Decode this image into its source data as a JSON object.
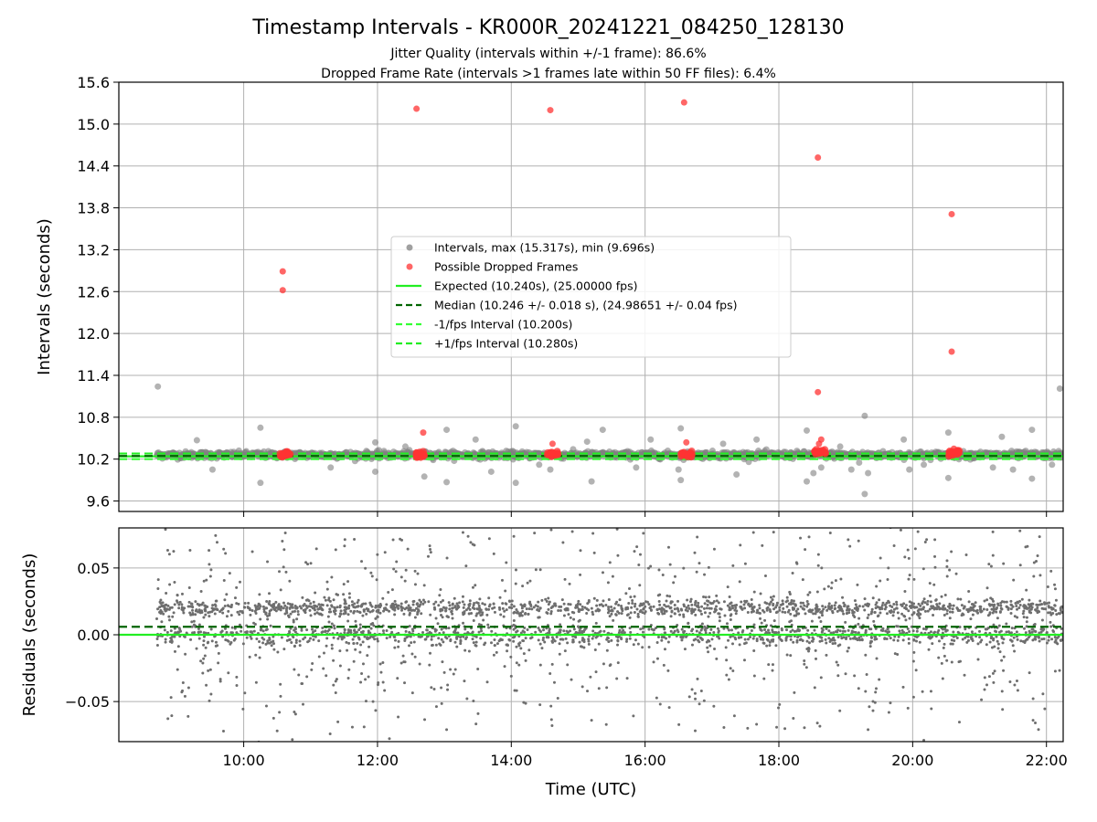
{
  "title": "Timestamp Intervals - KR000R_20241221_084250_128130",
  "subtitle_1": "Jitter Quality (intervals within +/-1 frame): 86.6%",
  "subtitle_2": "Dropped Frame Rate (intervals >1 frames late within 50 FF files): 6.4%",
  "colors": {
    "intervals": "#808080",
    "dropped": "#ff3333",
    "expected": "#22ee22",
    "median": "#006400",
    "minus_fps": "#33ff33",
    "plus_fps": "#22ee22",
    "residual_points": "#6e6e6e",
    "grid": "#b0b0b0"
  },
  "chart_data": [
    {
      "type": "scatter",
      "panel": "top",
      "xlabel": "",
      "ylabel": "Intervals (seconds)",
      "xlim": [
        "08:08",
        "22:15"
      ],
      "ylim": [
        9.45,
        15.6
      ],
      "yticks": [
        9.6,
        10.2,
        10.8,
        11.4,
        12.0,
        12.6,
        13.2,
        13.8,
        14.4,
        15.0,
        15.6
      ],
      "ytick_labels": [
        "9.6",
        "10.2",
        "10.8",
        "11.4",
        "12.0",
        "12.6",
        "13.2",
        "13.8",
        "14.4",
        "15.0",
        "15.6"
      ],
      "xticks": [
        "10:00",
        "12:00",
        "14:00",
        "16:00",
        "18:00",
        "20:00",
        "22:00"
      ],
      "grid": true,
      "legend_position": "center",
      "legend": [
        {
          "label": "Intervals, max (15.317s), min (9.696s)",
          "marker": "dot",
          "color_key": "intervals"
        },
        {
          "label": "Possible Dropped Frames",
          "marker": "dot",
          "color_key": "dropped"
        },
        {
          "label": "Expected (10.240s), (25.00000 fps)",
          "marker": "solid",
          "color_key": "expected"
        },
        {
          "label": "Median (10.246 +/- 0.018 s), (24.98651 +/- 0.04 fps)",
          "marker": "dashed",
          "color_key": "median"
        },
        {
          "label": "-1/fps Interval (10.200s)",
          "marker": "dashed",
          "color_key": "minus_fps"
        },
        {
          "label": "+1/fps Interval (10.280s)",
          "marker": "dashed",
          "color_key": "plus_fps"
        }
      ],
      "reference_lines": [
        {
          "name": "Expected",
          "y": 10.24,
          "style": "solid",
          "color_key": "expected"
        },
        {
          "name": "Median",
          "y": 10.246,
          "style": "dashed",
          "color_key": "median"
        },
        {
          "name": "-1/fps Interval",
          "y": 10.2,
          "style": "dashed",
          "color_key": "minus_fps"
        },
        {
          "name": "+1/fps Interval",
          "y": 10.28,
          "style": "dashed",
          "color_key": "plus_fps"
        }
      ],
      "series": [
        {
          "name": "Intervals",
          "color_key": "intervals",
          "band": {
            "x_start": "08:42",
            "x_end": "22:15",
            "y_center": 10.26,
            "y_spread": 0.05,
            "count": 1600
          },
          "points": [
            {
              "x": "08:43",
              "y": 11.24
            },
            {
              "x": "09:18",
              "y": 10.47
            },
            {
              "x": "09:32",
              "y": 10.05
            },
            {
              "x": "10:15",
              "y": 10.65
            },
            {
              "x": "10:15",
              "y": 9.86
            },
            {
              "x": "11:18",
              "y": 10.08
            },
            {
              "x": "11:58",
              "y": 10.44
            },
            {
              "x": "11:58",
              "y": 10.02
            },
            {
              "x": "12:25",
              "y": 10.38
            },
            {
              "x": "12:42",
              "y": 9.95
            },
            {
              "x": "13:02",
              "y": 10.62
            },
            {
              "x": "13:02",
              "y": 9.87
            },
            {
              "x": "13:28",
              "y": 10.48
            },
            {
              "x": "13:42",
              "y": 10.02
            },
            {
              "x": "14:04",
              "y": 10.67
            },
            {
              "x": "14:04",
              "y": 9.86
            },
            {
              "x": "14:25",
              "y": 10.12
            },
            {
              "x": "14:35",
              "y": 10.05
            },
            {
              "x": "15:08",
              "y": 10.45
            },
            {
              "x": "15:12",
              "y": 9.88
            },
            {
              "x": "15:22",
              "y": 10.62
            },
            {
              "x": "15:52",
              "y": 10.08
            },
            {
              "x": "16:05",
              "y": 10.48
            },
            {
              "x": "16:30",
              "y": 10.05
            },
            {
              "x": "16:32",
              "y": 9.9
            },
            {
              "x": "16:32",
              "y": 10.64
            },
            {
              "x": "17:10",
              "y": 10.42
            },
            {
              "x": "17:22",
              "y": 9.98
            },
            {
              "x": "17:40",
              "y": 10.48
            },
            {
              "x": "18:25",
              "y": 10.61
            },
            {
              "x": "18:25",
              "y": 9.88
            },
            {
              "x": "18:31",
              "y": 10.0
            },
            {
              "x": "18:38",
              "y": 10.08
            },
            {
              "x": "18:55",
              "y": 10.38
            },
            {
              "x": "19:05",
              "y": 10.05
            },
            {
              "x": "19:12",
              "y": 10.15
            },
            {
              "x": "19:17",
              "y": 10.82
            },
            {
              "x": "19:17",
              "y": 9.7
            },
            {
              "x": "19:20",
              "y": 10.0
            },
            {
              "x": "19:52",
              "y": 10.48
            },
            {
              "x": "19:57",
              "y": 10.05
            },
            {
              "x": "20:10",
              "y": 10.12
            },
            {
              "x": "20:32",
              "y": 10.58
            },
            {
              "x": "20:32",
              "y": 9.93
            },
            {
              "x": "21:12",
              "y": 10.08
            },
            {
              "x": "21:20",
              "y": 10.52
            },
            {
              "x": "21:30",
              "y": 10.05
            },
            {
              "x": "21:47",
              "y": 10.62
            },
            {
              "x": "21:47",
              "y": 9.92
            },
            {
              "x": "22:12",
              "y": 11.21
            },
            {
              "x": "22:05",
              "y": 10.12
            }
          ]
        },
        {
          "name": "Possible Dropped Frames",
          "color_key": "dropped",
          "clusters": [
            {
              "x_start": "10:32",
              "x_end": "10:42",
              "y": 10.27
            },
            {
              "x_start": "12:32",
              "x_end": "12:42",
              "y": 10.27
            },
            {
              "x_start": "14:32",
              "x_end": "14:42",
              "y": 10.27
            },
            {
              "x_start": "16:32",
              "x_end": "16:42",
              "y": 10.27
            },
            {
              "x_start": "18:32",
              "x_end": "18:42",
              "y": 10.3
            },
            {
              "x_start": "20:32",
              "x_end": "20:42",
              "y": 10.29
            }
          ],
          "points": [
            {
              "x": "10:35",
              "y": 12.89
            },
            {
              "x": "10:35",
              "y": 12.62
            },
            {
              "x": "12:35",
              "y": 15.22
            },
            {
              "x": "12:41",
              "y": 10.58
            },
            {
              "x": "14:35",
              "y": 15.2
            },
            {
              "x": "14:37",
              "y": 10.42
            },
            {
              "x": "16:35",
              "y": 15.31
            },
            {
              "x": "16:37",
              "y": 10.44
            },
            {
              "x": "18:35",
              "y": 14.52
            },
            {
              "x": "18:35",
              "y": 11.16
            },
            {
              "x": "18:38",
              "y": 10.48
            },
            {
              "x": "18:36",
              "y": 10.42
            },
            {
              "x": "20:35",
              "y": 13.71
            },
            {
              "x": "20:35",
              "y": 11.74
            },
            {
              "x": "20:37",
              "y": 10.35
            }
          ]
        }
      ]
    },
    {
      "type": "scatter",
      "panel": "bottom",
      "xlabel": "Time (UTC)",
      "ylabel": "Residuals (seconds)",
      "xlim": [
        "08:08",
        "22:15"
      ],
      "ylim": [
        -0.08,
        0.08
      ],
      "yticks": [
        -0.05,
        0.0,
        0.05
      ],
      "ytick_labels": [
        "−0.05",
        "0.00",
        "0.05"
      ],
      "xticks": [
        "10:00",
        "12:00",
        "14:00",
        "16:00",
        "18:00",
        "20:00",
        "22:00"
      ],
      "grid": true,
      "reference_lines": [
        {
          "name": "Expected",
          "y": 0.0,
          "style": "solid",
          "color_key": "expected"
        },
        {
          "name": "Median",
          "y": 0.006,
          "style": "dashed",
          "color_key": "median"
        }
      ],
      "series": [
        {
          "name": "Residuals",
          "color_key": "residual_points",
          "x_start": "08:42",
          "x_end": "22:15",
          "count": 3200,
          "bands": [
            {
              "y": 0.02,
              "spread": 0.003,
              "share": 0.38
            },
            {
              "y": 0.0,
              "spread": 0.004,
              "share": 0.34
            },
            {
              "y": 0.01,
              "spread": 0.045,
              "share": 0.28
            }
          ],
          "points": [
            {
              "x": "10:30",
              "y": -0.072
            },
            {
              "x": "10:32",
              "y": -0.058
            },
            {
              "x": "11:48",
              "y": -0.069
            },
            {
              "x": "13:02",
              "y": -0.071
            },
            {
              "x": "15:12",
              "y": -0.064
            },
            {
              "x": "17:32",
              "y": -0.07
            },
            {
              "x": "17:40",
              "y": -0.067
            },
            {
              "x": "19:20",
              "y": -0.071
            },
            {
              "x": "19:40",
              "y": -0.051
            },
            {
              "x": "20:10",
              "y": -0.079
            },
            {
              "x": "21:48",
              "y": -0.064
            },
            {
              "x": "21:50",
              "y": -0.066
            },
            {
              "x": "09:05",
              "y": -0.042
            },
            {
              "x": "14:00",
              "y": -0.031
            },
            {
              "x": "16:45",
              "y": -0.048
            }
          ]
        }
      ]
    }
  ]
}
